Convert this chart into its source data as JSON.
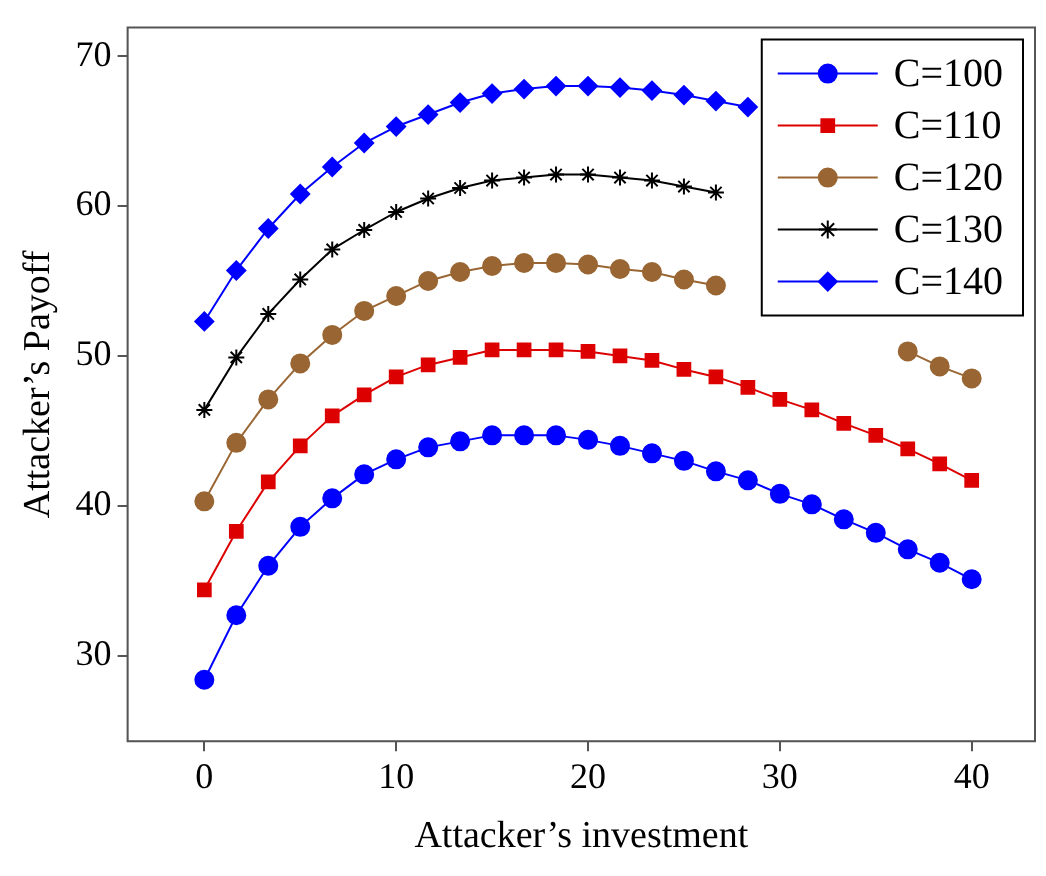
{
  "chart_data": {
    "type": "line",
    "xlabel": "Attacker’s investment",
    "ylabel": "Attacker’s Payoff",
    "x": [
      0,
      1.667,
      3.333,
      5,
      6.667,
      8.333,
      10,
      11.667,
      13.333,
      15,
      16.667,
      18.333,
      20,
      21.667,
      23.333,
      25,
      26.667,
      28.333,
      30,
      31.667,
      33.333,
      35,
      36.667,
      38.333,
      40
    ],
    "series": [
      {
        "name": "C=100",
        "color": "#0000ff",
        "marker": "circle",
        "values": [
          28.4,
          32.7,
          36.0,
          38.6,
          40.5,
          42.1,
          43.1,
          43.9,
          44.3,
          44.7,
          44.7,
          44.7,
          44.4,
          44.0,
          43.5,
          43.0,
          42.3,
          41.7,
          40.8,
          40.1,
          39.1,
          38.2,
          37.1,
          36.2,
          35.1
        ]
      },
      {
        "name": "C=110",
        "color": "#dd0000",
        "marker": "square",
        "values": [
          34.4,
          38.3,
          41.6,
          44.0,
          46.0,
          47.4,
          48.6,
          49.4,
          49.9,
          50.4,
          50.4,
          50.4,
          50.3,
          50.0,
          49.7,
          49.1,
          48.6,
          47.9,
          47.1,
          46.4,
          45.5,
          44.7,
          43.8,
          42.8,
          41.7
        ]
      },
      {
        "name": "C=120",
        "color": "#996633",
        "marker": "circle",
        "values": [
          40.3,
          44.2,
          47.1,
          49.5,
          51.4,
          53.0,
          54.0,
          55.0,
          55.6,
          56.0,
          56.2,
          56.2,
          56.1,
          55.8,
          55.6,
          55.1,
          54.7,
          null,
          null,
          null,
          null,
          null,
          50.3,
          49.3,
          48.5
        ]
      },
      {
        "name": "C=130",
        "color": "#000000",
        "marker": "cross",
        "values": [
          46.4,
          49.9,
          52.8,
          55.1,
          57.1,
          58.4,
          59.6,
          60.5,
          61.2,
          61.7,
          61.9,
          62.1,
          62.1,
          61.9,
          61.7,
          61.3,
          60.9,
          null,
          null,
          null,
          null,
          null,
          null,
          null,
          null
        ]
      },
      {
        "name": "C=140",
        "color": "#0000ff",
        "marker": "diamond",
        "values": [
          52.3,
          55.7,
          58.5,
          60.8,
          62.6,
          64.2,
          65.3,
          66.1,
          66.9,
          67.5,
          67.8,
          68.0,
          68.0,
          67.9,
          67.7,
          67.4,
          67.0,
          66.6,
          null,
          null,
          null,
          null,
          null,
          null,
          null
        ]
      }
    ],
    "xlim": [
      -4,
      43.3
    ],
    "xticks": [
      0,
      10,
      20,
      30,
      40
    ],
    "ylim": [
      24.3,
      71.9
    ],
    "yticks": [
      30,
      40,
      50,
      60,
      70
    ],
    "grid": false,
    "legend": "top right"
  }
}
